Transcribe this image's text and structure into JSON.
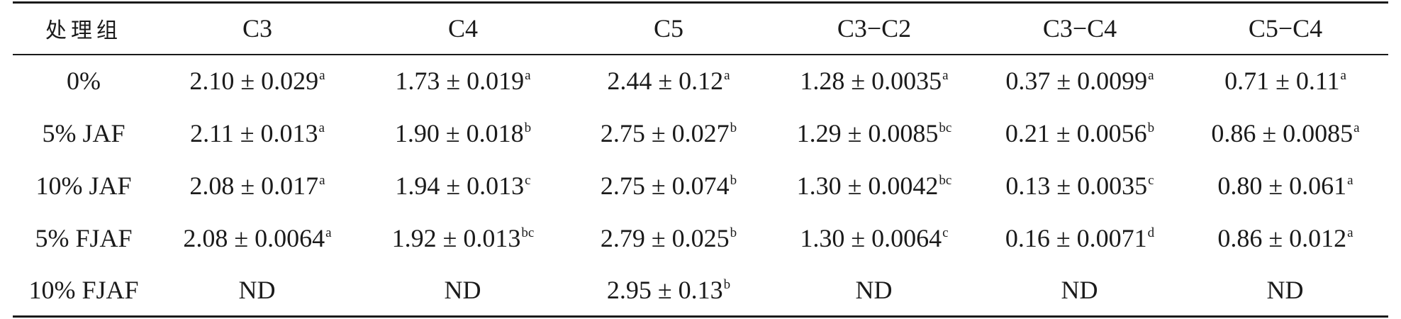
{
  "table": {
    "headers": [
      "处理组",
      "C3",
      "C4",
      "C5",
      "C3−C2",
      "C3−C4",
      "C5−C4"
    ],
    "rows": [
      {
        "group": "0%",
        "cells": [
          {
            "value": "2.10 ± 0.029",
            "sig": "a"
          },
          {
            "value": "1.73 ± 0.019",
            "sig": "a"
          },
          {
            "value": "2.44 ± 0.12",
            "sig": "a"
          },
          {
            "value": "1.28 ± 0.0035",
            "sig": "a"
          },
          {
            "value": "0.37 ± 0.0099",
            "sig": "a"
          },
          {
            "value": "0.71 ± 0.11",
            "sig": "a"
          }
        ]
      },
      {
        "group": "5% JAF",
        "cells": [
          {
            "value": "2.11 ± 0.013",
            "sig": "a"
          },
          {
            "value": "1.90 ± 0.018",
            "sig": "b"
          },
          {
            "value": "2.75 ± 0.027",
            "sig": "b"
          },
          {
            "value": "1.29 ± 0.0085",
            "sig": "bc"
          },
          {
            "value": "0.21 ± 0.0056",
            "sig": "b"
          },
          {
            "value": "0.86 ± 0.0085",
            "sig": "a"
          }
        ]
      },
      {
        "group": "10% JAF",
        "cells": [
          {
            "value": "2.08 ± 0.017",
            "sig": "a"
          },
          {
            "value": "1.94 ± 0.013",
            "sig": "c"
          },
          {
            "value": "2.75 ± 0.074",
            "sig": "b"
          },
          {
            "value": "1.30 ± 0.0042",
            "sig": "bc"
          },
          {
            "value": "0.13 ± 0.0035",
            "sig": "c"
          },
          {
            "value": "0.80 ± 0.061",
            "sig": "a"
          }
        ]
      },
      {
        "group": "5% FJAF",
        "cells": [
          {
            "value": "2.08 ± 0.0064",
            "sig": "a"
          },
          {
            "value": "1.92 ± 0.013",
            "sig": "bc"
          },
          {
            "value": "2.79 ± 0.025",
            "sig": "b"
          },
          {
            "value": "1.30 ± 0.0064",
            "sig": "c"
          },
          {
            "value": "0.16 ± 0.0071",
            "sig": "d"
          },
          {
            "value": "0.86 ± 0.012",
            "sig": "a"
          }
        ]
      },
      {
        "group": "10% FJAF",
        "cells": [
          {
            "value": "ND",
            "sig": ""
          },
          {
            "value": "ND",
            "sig": ""
          },
          {
            "value": "2.95 ± 0.13",
            "sig": "b"
          },
          {
            "value": "ND",
            "sig": ""
          },
          {
            "value": "ND",
            "sig": ""
          },
          {
            "value": "ND",
            "sig": ""
          }
        ]
      }
    ]
  }
}
